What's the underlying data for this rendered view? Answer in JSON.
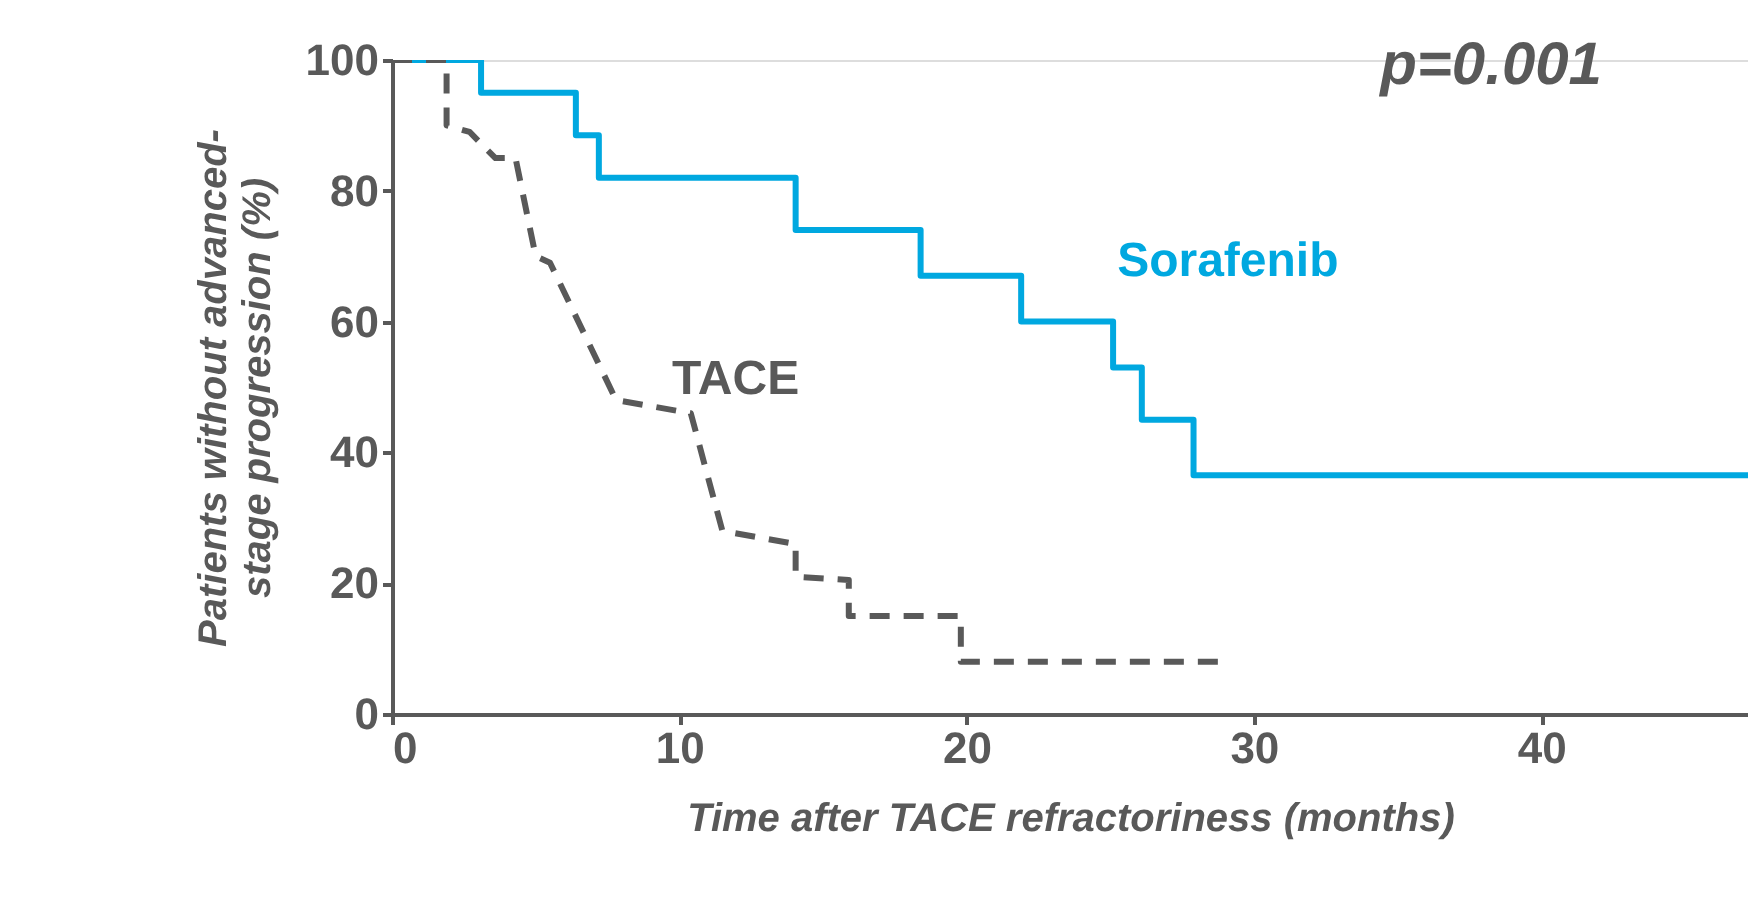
{
  "chart_data": {
    "type": "line",
    "xlabel": "Time after TACE refractoriness (months)",
    "ylabel": "Patients without advanced-stage progression (%)",
    "annotations": [
      "p=0.001"
    ],
    "xlim": [
      0,
      47.2
    ],
    "ylim": [
      0,
      100
    ],
    "xticks": [
      0,
      10,
      20,
      30,
      40
    ],
    "yticks": [
      0,
      20,
      40,
      60,
      80,
      100
    ],
    "grid": false,
    "legend": false,
    "series": [
      {
        "name": "Sorafenib",
        "type": "step",
        "color": "#00a8e0",
        "line_style": "solid",
        "x": [
          0,
          3.1,
          6.4,
          7.2,
          14.05,
          18.4,
          21.9,
          25.1,
          26.1,
          27.9,
          47.2
        ],
        "values": [
          100,
          95,
          88.5,
          82,
          74,
          67,
          60,
          53,
          45,
          36.5,
          36.5
        ]
      },
      {
        "name": "TACE",
        "type": "line",
        "color": "#595959",
        "line_style": "dashed",
        "x": [
          0,
          1.9,
          1.9,
          2.7,
          3.6,
          3.6,
          4.3,
          5.0,
          5.5,
          7.8,
          10.4,
          11.5,
          14.05,
          14.05,
          15.9,
          15.9,
          19.8,
          19.8,
          28.8
        ],
        "values": [
          100,
          100,
          90,
          89,
          85,
          85,
          85,
          70,
          69,
          48,
          46,
          28,
          26,
          21,
          20.5,
          15,
          15,
          8,
          8
        ]
      }
    ]
  }
}
